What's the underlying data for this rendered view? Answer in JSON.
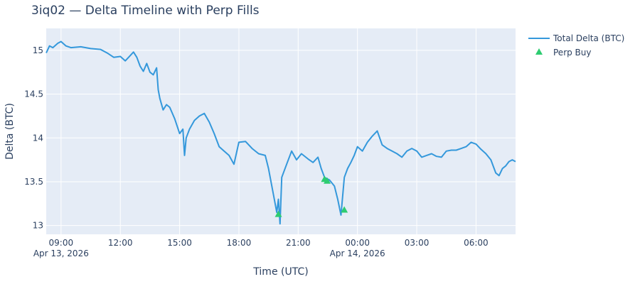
{
  "chart_data": {
    "type": "line",
    "title": "3iq02 — Delta Timeline with Perp Fills",
    "xlabel": "Time (UTC)",
    "ylabel": "Delta (BTC)",
    "x_range": [
      "2026-04-13 08:15",
      "2026-04-14 08:00"
    ],
    "ylim": [
      12.9,
      15.25
    ],
    "grid": true,
    "legend_position": "top-right",
    "x_ticks": [
      {
        "t": "2026-04-13 09:00",
        "label": "09:00",
        "sub": "Apr 13, 2026"
      },
      {
        "t": "2026-04-13 12:00",
        "label": "12:00",
        "sub": ""
      },
      {
        "t": "2026-04-13 15:00",
        "label": "15:00",
        "sub": ""
      },
      {
        "t": "2026-04-13 18:00",
        "label": "18:00",
        "sub": ""
      },
      {
        "t": "2026-04-13 21:00",
        "label": "21:00",
        "sub": ""
      },
      {
        "t": "2026-04-14 00:00",
        "label": "00:00",
        "sub": "Apr 14, 2026"
      },
      {
        "t": "2026-04-14 03:00",
        "label": "03:00",
        "sub": ""
      },
      {
        "t": "2026-04-14 06:00",
        "label": "06:00",
        "sub": ""
      }
    ],
    "y_ticks": [
      {
        "v": 13,
        "label": "13"
      },
      {
        "v": 13.5,
        "label": "13.5"
      },
      {
        "v": 14,
        "label": "14"
      },
      {
        "v": 14.5,
        "label": "14.5"
      },
      {
        "v": 15,
        "label": "15"
      }
    ],
    "series": [
      {
        "name": "Total Delta (BTC)",
        "type": "line",
        "color": "#3498db",
        "points": [
          [
            "2026-04-13 08:15",
            14.97
          ],
          [
            "2026-04-13 08:25",
            15.05
          ],
          [
            "2026-04-13 08:35",
            15.03
          ],
          [
            "2026-04-13 08:50",
            15.08
          ],
          [
            "2026-04-13 09:00",
            15.1
          ],
          [
            "2026-04-13 09:15",
            15.05
          ],
          [
            "2026-04-13 09:30",
            15.03
          ],
          [
            "2026-04-13 10:00",
            15.04
          ],
          [
            "2026-04-13 10:30",
            15.02
          ],
          [
            "2026-04-13 11:00",
            15.01
          ],
          [
            "2026-04-13 11:20",
            14.97
          ],
          [
            "2026-04-13 11:40",
            14.92
          ],
          [
            "2026-04-13 12:00",
            14.93
          ],
          [
            "2026-04-13 12:15",
            14.88
          ],
          [
            "2026-04-13 12:30",
            14.94
          ],
          [
            "2026-04-13 12:40",
            14.98
          ],
          [
            "2026-04-13 12:50",
            14.92
          ],
          [
            "2026-04-13 13:00",
            14.82
          ],
          [
            "2026-04-13 13:10",
            14.76
          ],
          [
            "2026-04-13 13:20",
            14.85
          ],
          [
            "2026-04-13 13:30",
            14.75
          ],
          [
            "2026-04-13 13:40",
            14.72
          ],
          [
            "2026-04-13 13:50",
            14.8
          ],
          [
            "2026-04-13 13:55",
            14.55
          ],
          [
            "2026-04-13 14:00",
            14.45
          ],
          [
            "2026-04-13 14:10",
            14.32
          ],
          [
            "2026-04-13 14:20",
            14.38
          ],
          [
            "2026-04-13 14:30",
            14.35
          ],
          [
            "2026-04-13 14:45",
            14.22
          ],
          [
            "2026-04-13 15:00",
            14.05
          ],
          [
            "2026-04-13 15:10",
            14.1
          ],
          [
            "2026-04-13 15:15",
            13.8
          ],
          [
            "2026-04-13 15:20",
            14.0
          ],
          [
            "2026-04-13 15:30",
            14.1
          ],
          [
            "2026-04-13 15:45",
            14.2
          ],
          [
            "2026-04-13 16:00",
            14.25
          ],
          [
            "2026-04-13 16:15",
            14.28
          ],
          [
            "2026-04-13 16:30",
            14.18
          ],
          [
            "2026-04-13 16:45",
            14.05
          ],
          [
            "2026-04-13 17:00",
            13.9
          ],
          [
            "2026-04-13 17:15",
            13.85
          ],
          [
            "2026-04-13 17:30",
            13.8
          ],
          [
            "2026-04-13 17:45",
            13.7
          ],
          [
            "2026-04-13 18:00",
            13.95
          ],
          [
            "2026-04-13 18:20",
            13.96
          ],
          [
            "2026-04-13 18:40",
            13.88
          ],
          [
            "2026-04-13 19:00",
            13.82
          ],
          [
            "2026-04-13 19:20",
            13.8
          ],
          [
            "2026-04-13 19:30",
            13.65
          ],
          [
            "2026-04-13 19:45",
            13.35
          ],
          [
            "2026-04-13 19:55",
            13.15
          ],
          [
            "2026-04-13 20:00",
            13.3
          ],
          [
            "2026-04-13 20:05",
            13.02
          ],
          [
            "2026-04-13 20:10",
            13.55
          ],
          [
            "2026-04-13 20:25",
            13.7
          ],
          [
            "2026-04-13 20:40",
            13.85
          ],
          [
            "2026-04-13 20:55",
            13.75
          ],
          [
            "2026-04-13 21:10",
            13.82
          ],
          [
            "2026-04-13 21:30",
            13.76
          ],
          [
            "2026-04-13 21:45",
            13.72
          ],
          [
            "2026-04-13 22:00",
            13.78
          ],
          [
            "2026-04-13 22:10",
            13.65
          ],
          [
            "2026-04-13 22:20",
            13.55
          ],
          [
            "2026-04-13 22:35",
            13.52
          ],
          [
            "2026-04-13 22:50",
            13.45
          ],
          [
            "2026-04-13 23:00",
            13.3
          ],
          [
            "2026-04-13 23:10",
            13.12
          ],
          [
            "2026-04-13 23:20",
            13.55
          ],
          [
            "2026-04-13 23:30",
            13.65
          ],
          [
            "2026-04-13 23:40",
            13.72
          ],
          [
            "2026-04-13 23:50",
            13.8
          ],
          [
            "2026-04-14 00:00",
            13.9
          ],
          [
            "2026-04-14 00:15",
            13.85
          ],
          [
            "2026-04-14 00:30",
            13.95
          ],
          [
            "2026-04-14 00:45",
            14.02
          ],
          [
            "2026-04-14 01:00",
            14.08
          ],
          [
            "2026-04-14 01:15",
            13.92
          ],
          [
            "2026-04-14 01:30",
            13.88
          ],
          [
            "2026-04-14 01:45",
            13.85
          ],
          [
            "2026-04-14 02:00",
            13.82
          ],
          [
            "2026-04-14 02:15",
            13.78
          ],
          [
            "2026-04-14 02:30",
            13.85
          ],
          [
            "2026-04-14 02:45",
            13.88
          ],
          [
            "2026-04-14 03:00",
            13.85
          ],
          [
            "2026-04-14 03:15",
            13.78
          ],
          [
            "2026-04-14 03:30",
            13.8
          ],
          [
            "2026-04-14 03:45",
            13.82
          ],
          [
            "2026-04-14 04:00",
            13.79
          ],
          [
            "2026-04-14 04:15",
            13.78
          ],
          [
            "2026-04-14 04:30",
            13.85
          ],
          [
            "2026-04-14 04:45",
            13.86
          ],
          [
            "2026-04-14 05:00",
            13.86
          ],
          [
            "2026-04-14 05:15",
            13.88
          ],
          [
            "2026-04-14 05:30",
            13.9
          ],
          [
            "2026-04-14 05:45",
            13.95
          ],
          [
            "2026-04-14 06:00",
            13.93
          ],
          [
            "2026-04-14 06:15",
            13.87
          ],
          [
            "2026-04-14 06:30",
            13.82
          ],
          [
            "2026-04-14 06:45",
            13.75
          ],
          [
            "2026-04-14 07:00",
            13.6
          ],
          [
            "2026-04-14 07:10",
            13.57
          ],
          [
            "2026-04-14 07:20",
            13.65
          ],
          [
            "2026-04-14 07:30",
            13.68
          ],
          [
            "2026-04-14 07:40",
            13.73
          ],
          [
            "2026-04-14 07:50",
            13.75
          ],
          [
            "2026-04-14 08:00",
            13.73
          ]
        ]
      },
      {
        "name": "Perp Buy",
        "type": "scatter",
        "marker": "triangle-up",
        "color": "#2ecc71",
        "points": [
          [
            "2026-04-13 20:00",
            13.13
          ],
          [
            "2026-04-13 22:20",
            13.53
          ],
          [
            "2026-04-13 22:28",
            13.51
          ],
          [
            "2026-04-13 23:20",
            13.18
          ]
        ]
      }
    ]
  }
}
